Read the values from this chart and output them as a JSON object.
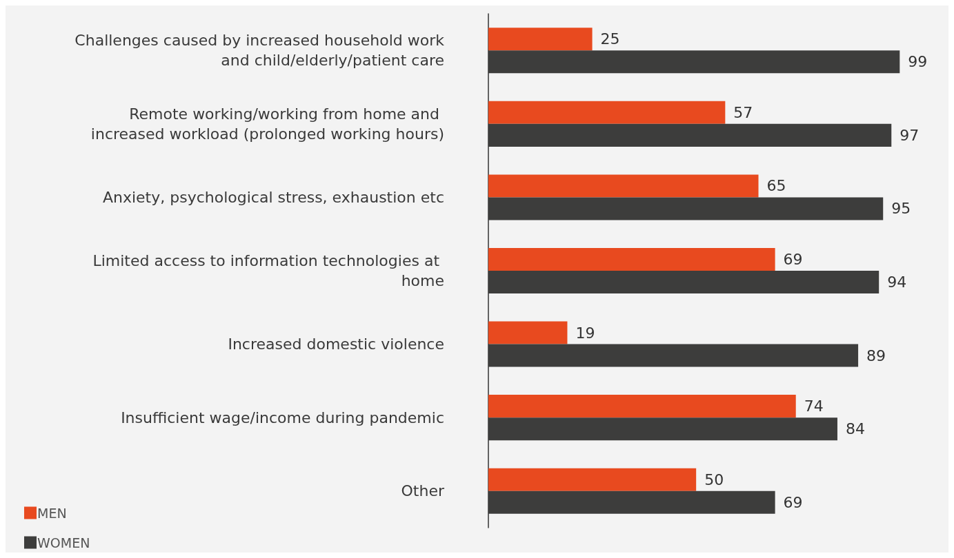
{
  "chart_data": {
    "type": "bar",
    "orientation": "horizontal",
    "data_labels": true,
    "legend": "bottom left",
    "categories": [
      "Challenges caused by increased household work and child/elderly/patient care",
      "Remote working/working from home and increased workload (prolonged working hours)",
      "Anxiety, psychological stress, exhaustion etc",
      "Limited access to information technologies at home",
      "Increased domestic violence",
      "Insufficient wage/income during pandemic",
      "Other"
    ],
    "series": [
      {
        "name": "MEN",
        "color": "#e84a1f",
        "values": [
          25,
          57,
          65,
          69,
          19,
          74,
          50
        ]
      },
      {
        "name": "WOMEN",
        "color": "#3d3d3c",
        "values": [
          99,
          97,
          95,
          94,
          89,
          84,
          69
        ]
      }
    ]
  }
}
